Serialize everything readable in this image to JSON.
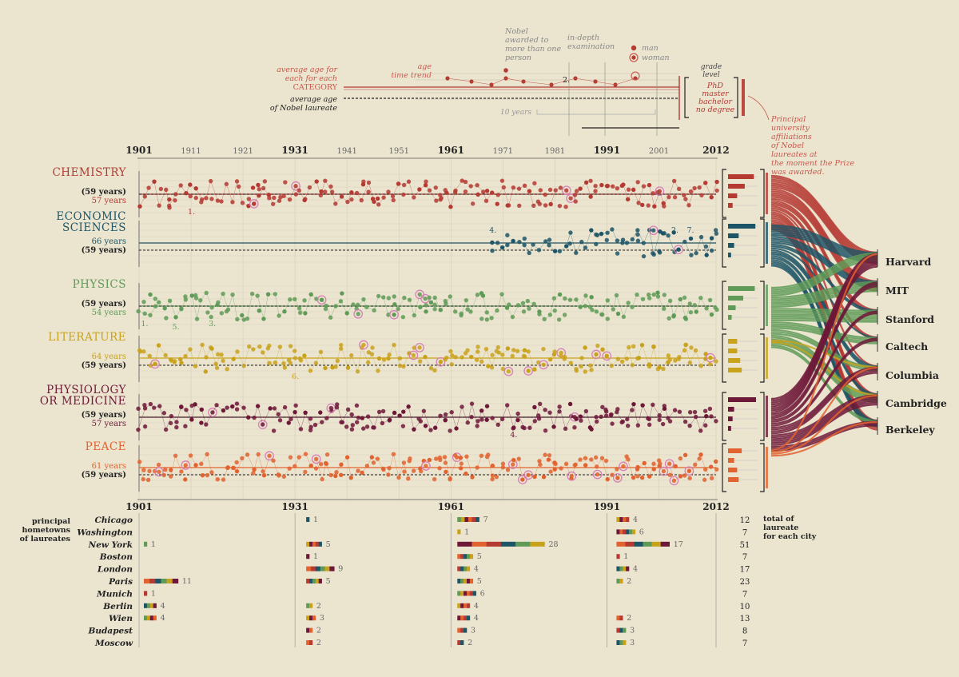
{
  "colors": {
    "background": "#ebe5d0",
    "chemistry": "#b53a32",
    "economics": "#1d5566",
    "physics": "#5f9b57",
    "literature": "#c9a21c",
    "medicine": "#6e1838",
    "peace": "#e2632f",
    "text": "#222222",
    "grey": "#9a9a8e"
  },
  "legend": {
    "avg_category": [
      "average age for",
      "each for each",
      "CATEGORY"
    ],
    "avg_all": [
      "average age",
      "of Nobel laureate"
    ],
    "age_trend": [
      "age",
      "time trend"
    ],
    "nobel_shared": [
      "Nobel",
      "awarded to",
      "more than one",
      "person"
    ],
    "in_depth": [
      "in-depth",
      "examination"
    ],
    "man": "man",
    "woman": "woman",
    "ten_years": "10 years",
    "grade_title": [
      "grade",
      "level"
    ],
    "grades": [
      "PhD",
      "master",
      "bachelor",
      "no degree"
    ],
    "affiliations": [
      "Principal",
      "university",
      "affiliations",
      "of Nobel",
      "laureates at",
      "the moment the Prize",
      "was awarded."
    ],
    "marker_two": "2."
  },
  "axis": {
    "top_years": [
      "1901",
      "1911",
      "1921",
      "1931",
      "1941",
      "1951",
      "1961",
      "1971",
      "1981",
      "1991",
      "2001",
      "2012"
    ],
    "top_years_bold": [
      "1901",
      "1931",
      "1961",
      "1991",
      "2012"
    ],
    "bottom_years": [
      "1901",
      "1931",
      "1961",
      "1991",
      "2012"
    ]
  },
  "universities": [
    "Harvard",
    "MIT",
    "Stanford",
    "Caltech",
    "Columbia",
    "Cambridge",
    "Berkeley"
  ],
  "chart_data": {
    "type": "scatter",
    "x_range": [
      1901,
      2012
    ],
    "overall_average_age": "(59 years)",
    "categories": [
      {
        "key": "chemistry",
        "title": [
          "CHEMISTRY"
        ],
        "labels": [
          "(59 years)",
          "57 years"
        ],
        "avg_age": 57,
        "start": 1901,
        "notes": [
          {
            "text": "1.",
            "year": 1911
          }
        ],
        "grades": [
          0.85,
          0.55,
          0.3,
          0.15
        ],
        "uni_weights": [
          7,
          6,
          3,
          2,
          1,
          4,
          6
        ]
      },
      {
        "key": "economics",
        "title": [
          "ECONOMIC",
          "SCIENCES"
        ],
        "labels": [
          "66 years",
          "(59 years)"
        ],
        "avg_age": 66,
        "start": 1969,
        "notes": [
          {
            "text": "4.",
            "year": 1969
          },
          {
            "text": "2.",
            "year": 2004
          },
          {
            "text": "7.",
            "year": 2007
          }
        ],
        "grades": [
          0.9,
          0.35,
          0.2,
          0.1
        ],
        "uni_weights": [
          6,
          4,
          2,
          1,
          3,
          2,
          4
        ]
      },
      {
        "key": "physics",
        "title": [
          "PHYSICS"
        ],
        "labels": [
          "(59 years)",
          "54 years"
        ],
        "avg_age": 54,
        "start": 1901,
        "notes": [
          {
            "text": "1.",
            "year": 1902
          },
          {
            "text": "5.",
            "year": 1908
          },
          {
            "text": "3.",
            "year": 1915
          }
        ],
        "grades": [
          0.88,
          0.5,
          0.25,
          0.12
        ],
        "uni_weights": [
          5,
          6,
          7,
          4,
          3,
          5,
          2
        ]
      },
      {
        "key": "literature",
        "title": [
          "LITERATURE"
        ],
        "labels": [
          "64 years",
          "(59 years)"
        ],
        "avg_age": 64,
        "start": 1901,
        "notes": [
          {
            "text": "6.",
            "year": 1931
          }
        ],
        "grades": [
          0.3,
          0.3,
          0.4,
          0.45
        ],
        "uni_weights": [
          0,
          0,
          0,
          0,
          1,
          1,
          0
        ]
      },
      {
        "key": "medicine",
        "title": [
          "PHYSIOLOGY",
          "OR MEDICINE"
        ],
        "labels": [
          "(59 years)",
          "57 years"
        ],
        "avg_age": 57,
        "start": 1901,
        "notes": [
          {
            "text": "4.",
            "year": 1973
          }
        ],
        "grades": [
          0.92,
          0.2,
          0.15,
          0.1
        ],
        "uni_weights": [
          8,
          3,
          2,
          2,
          4,
          6,
          3
        ]
      },
      {
        "key": "peace",
        "title": [
          "PEACE"
        ],
        "labels": [
          "61 years",
          "(59 years)"
        ],
        "avg_age": 61,
        "start": 1901,
        "notes": [],
        "grades": [
          0.45,
          0.2,
          0.3,
          0.35
        ],
        "uni_weights": [
          1,
          0,
          0,
          0,
          1,
          1,
          1
        ]
      }
    ],
    "hometowns": {
      "title": [
        "principal",
        "hometowns",
        "of laureates"
      ],
      "total_title": [
        "total of",
        "laureate",
        "for each city"
      ],
      "period_starts": [
        "1901",
        "1931",
        "1961",
        "1991"
      ],
      "cities": [
        {
          "name": "Chicago",
          "counts": [
            0,
            1,
            7,
            4
          ],
          "total": "12"
        },
        {
          "name": "Washington",
          "counts": [
            0,
            0,
            1,
            6
          ],
          "total": "7"
        },
        {
          "name": "New York",
          "counts": [
            1,
            5,
            28,
            17
          ],
          "total": "51"
        },
        {
          "name": "Boston",
          "counts": [
            0,
            1,
            5,
            1
          ],
          "total": "7"
        },
        {
          "name": "London",
          "counts": [
            0,
            9,
            4,
            4
          ],
          "total": "17"
        },
        {
          "name": "Paris",
          "counts": [
            11,
            5,
            5,
            2
          ],
          "total": "23"
        },
        {
          "name": "Munich",
          "counts": [
            1,
            0,
            6,
            0
          ],
          "total": "7"
        },
        {
          "name": "Berlin",
          "counts": [
            4,
            2,
            4,
            0
          ],
          "total": "10"
        },
        {
          "name": "Wien",
          "counts": [
            4,
            3,
            4,
            2
          ],
          "total": "13"
        },
        {
          "name": "Budapest",
          "counts": [
            0,
            2,
            3,
            3
          ],
          "total": "8"
        },
        {
          "name": "Moscow",
          "counts": [
            0,
            2,
            2,
            3
          ],
          "total": "7"
        }
      ]
    }
  }
}
